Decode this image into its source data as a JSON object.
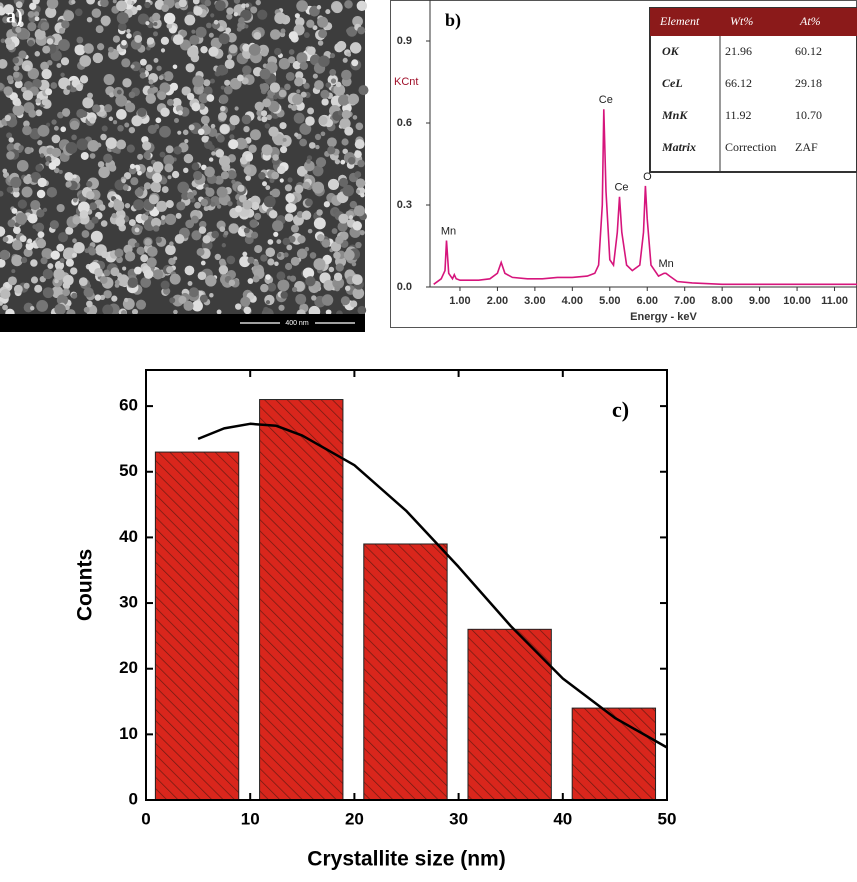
{
  "sem": {
    "label": "a)",
    "scale_bar": "400 nm"
  },
  "chart_data": [
    {
      "type": "line",
      "label": "b)",
      "y_label": "KCnt",
      "x_label": "Energy - keV",
      "color": "#d6157c",
      "x": [
        0.3,
        0.5,
        0.6,
        0.64,
        0.7,
        0.8,
        0.85,
        0.9,
        1.0,
        1.2,
        1.5,
        1.8,
        2.0,
        2.1,
        2.2,
        2.4,
        2.8,
        3.2,
        3.6,
        4.0,
        4.4,
        4.6,
        4.7,
        4.8,
        4.84,
        4.9,
        5.0,
        5.1,
        5.2,
        5.26,
        5.32,
        5.45,
        5.6,
        5.8,
        5.9,
        5.95,
        6.0,
        6.1,
        6.3,
        6.45,
        6.5,
        6.6,
        6.8,
        7.2,
        8,
        9,
        10,
        11,
        11.6
      ],
      "values": [
        0.01,
        0.03,
        0.06,
        0.17,
        0.05,
        0.03,
        0.045,
        0.03,
        0.025,
        0.025,
        0.025,
        0.03,
        0.05,
        0.09,
        0.05,
        0.035,
        0.03,
        0.03,
        0.035,
        0.035,
        0.04,
        0.05,
        0.08,
        0.3,
        0.65,
        0.35,
        0.1,
        0.08,
        0.2,
        0.33,
        0.2,
        0.08,
        0.06,
        0.08,
        0.2,
        0.37,
        0.25,
        0.08,
        0.04,
        0.05,
        0.05,
        0.04,
        0.02,
        0.015,
        0.01,
        0.01,
        0.01,
        0.01,
        0.01
      ],
      "xlim": [
        0.2,
        11.6
      ],
      "ylim": [
        0,
        1.05
      ],
      "xticks": [
        {
          "value": 1,
          "label": "1.00"
        },
        {
          "value": 2,
          "label": "2.00"
        },
        {
          "value": 3,
          "label": "3.00"
        },
        {
          "value": 4,
          "label": "4.00"
        },
        {
          "value": 5,
          "label": "5.00"
        },
        {
          "value": 6,
          "label": "6.00"
        },
        {
          "value": 7,
          "label": "7.00"
        },
        {
          "value": 8,
          "label": "8.00"
        },
        {
          "value": 9,
          "label": "9.00"
        },
        {
          "value": 10,
          "label": "10.00"
        },
        {
          "value": 11,
          "label": "11.00"
        }
      ],
      "yticks": [
        {
          "value": 0,
          "label": "0.0"
        },
        0.3,
        0.6,
        0.9
      ],
      "annotations": [
        {
          "text": "Mn",
          "x": 0.64
        },
        {
          "text": "Ce",
          "x": 4.84
        },
        {
          "text": "Ce",
          "x": 5.26
        },
        {
          "text": "O",
          "x": 5.95
        },
        {
          "text": "Mn",
          "x": 6.45
        }
      ],
      "table": {
        "header": [
          "Element",
          "Wt%",
          "At%"
        ],
        "rows": [
          [
            "OK",
            "21.96",
            "60.12"
          ],
          [
            "CeL",
            "66.12",
            "29.18"
          ],
          [
            "MnK",
            "11.92",
            "10.70"
          ],
          [
            "Matrix",
            "Correction",
            "ZAF"
          ]
        ]
      }
    },
    {
      "type": "histogram",
      "label": "c)",
      "x_label": "Crystallite size (nm)",
      "y_label": "Counts",
      "color": "#d9261c",
      "bins": [
        0,
        10,
        20,
        30,
        40,
        50
      ],
      "values": [
        53,
        61,
        39,
        26,
        14
      ],
      "fit": {
        "x": [
          5,
          7.5,
          10,
          12.5,
          15,
          20,
          25,
          30,
          35,
          40,
          45,
          50
        ],
        "values": [
          55,
          56.6,
          57.3,
          57,
          55.5,
          51,
          44,
          35.5,
          26.5,
          18.5,
          12.5,
          8
        ],
        "color": "#000000"
      },
      "xlim": [
        0,
        50
      ],
      "ylim": [
        0,
        65.5
      ],
      "xticks": [
        0,
        10,
        20,
        30,
        40,
        50
      ],
      "yticks": [
        0,
        10,
        20,
        30,
        40,
        50,
        60
      ]
    }
  ]
}
